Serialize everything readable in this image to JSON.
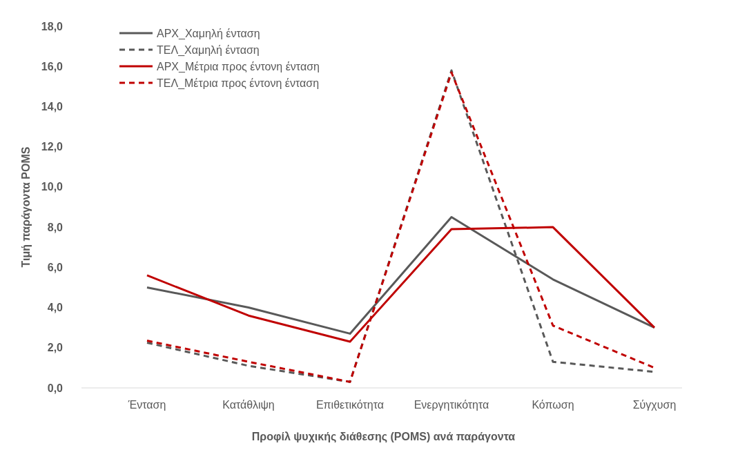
{
  "chart_data": {
    "type": "line",
    "xlabel": "Προφίλ ψυχικής διάθεσης (POMS) ανά παράγοντα",
    "ylabel": "Τιμή παράγοντα POMS",
    "categories": [
      "Ένταση",
      "Κατάθλιψη",
      "Επιθετικότητα",
      "Ενεργητικότητα",
      "Κόπωση",
      "Σύγχυση"
    ],
    "ylim": [
      0,
      18
    ],
    "yticks": [
      {
        "value": 0,
        "label": "0,0"
      },
      {
        "value": 2,
        "label": "2,0"
      },
      {
        "value": 4,
        "label": "4,0"
      },
      {
        "value": 6,
        "label": "6,0"
      },
      {
        "value": 8,
        "label": "8,0"
      },
      {
        "value": 10,
        "label": "10,0"
      },
      {
        "value": 12,
        "label": "12,0"
      },
      {
        "value": 14,
        "label": "14,0"
      },
      {
        "value": 16,
        "label": "16,0"
      },
      {
        "value": 18,
        "label": "18,0"
      }
    ],
    "legend": "top left",
    "grid": false,
    "marker": "none",
    "series": [
      {
        "name": "ΑΡΧ_Χαμηλή ένταση",
        "color": "#595959",
        "line_style": "solid",
        "values": [
          5.0,
          4.0,
          2.7,
          8.5,
          5.4,
          3.0
        ]
      },
      {
        "name": "ΤΕΛ_Χαμηλή ένταση",
        "color": "#595959",
        "line_style": "dashed",
        "values": [
          2.25,
          1.1,
          0.3,
          15.8,
          1.3,
          0.8
        ]
      },
      {
        "name": "ΑΡΧ_Μέτρια προς έντονη ένταση",
        "color": "#c00000",
        "line_style": "solid",
        "values": [
          5.6,
          3.6,
          2.3,
          7.9,
          8.0,
          3.0
        ]
      },
      {
        "name": "ΤΕΛ_Μέτρια προς έντονη ένταση",
        "color": "#c00000",
        "line_style": "dashed",
        "values": [
          2.35,
          1.3,
          0.3,
          15.7,
          3.1,
          1.0
        ]
      }
    ]
  }
}
